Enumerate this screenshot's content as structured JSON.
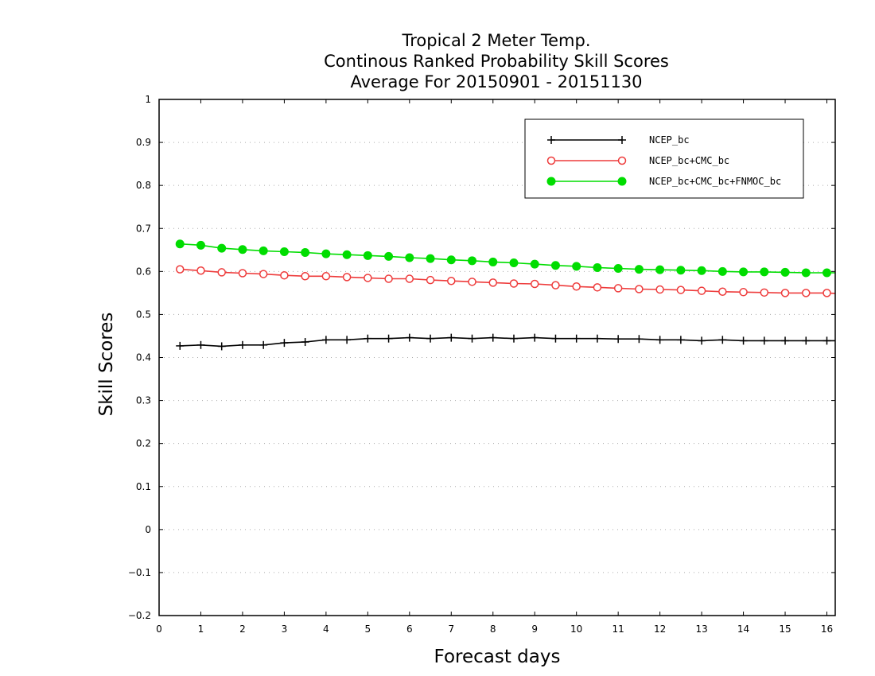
{
  "chart_data": {
    "type": "line",
    "title": [
      "Tropical 2 Meter Temp.",
      "Continous Ranked Probability Skill Scores",
      "Average For 20150901 - 20151130"
    ],
    "xlabel": "Forecast days",
    "ylabel": "Skill Scores",
    "xlim": [
      0,
      16.2
    ],
    "ylim": [
      -0.2,
      1
    ],
    "xticks": [
      0,
      1,
      2,
      3,
      4,
      5,
      6,
      7,
      8,
      9,
      10,
      11,
      12,
      13,
      14,
      15,
      16
    ],
    "xtick_labels": [
      "0",
      "1",
      "2",
      "3",
      "4",
      "5",
      "6",
      "7",
      "8",
      "9",
      "10",
      "11",
      "12",
      "13",
      "14",
      "15",
      "16"
    ],
    "yticks": [
      -0.2,
      -0.1,
      0,
      0.1,
      0.2,
      0.3,
      0.4,
      0.5,
      0.6,
      0.7,
      0.8,
      0.9,
      1
    ],
    "ytick_labels": [
      "−0.2",
      "−0.1",
      "0",
      "0.1",
      "0.2",
      "0.3",
      "0.4",
      "0.5",
      "0.6",
      "0.7",
      "0.8",
      "0.9",
      "1"
    ],
    "grid": true,
    "legend_position": "top-right",
    "x": [
      0.5,
      1,
      1.5,
      2,
      2.5,
      3,
      3.5,
      4,
      4.5,
      5,
      5.5,
      6,
      6.5,
      7,
      7.5,
      8,
      8.5,
      9,
      9.5,
      10,
      10.5,
      11,
      11.5,
      12,
      12.5,
      13,
      13.5,
      14,
      14.5,
      15,
      15.5,
      16,
      16.2
    ],
    "series": [
      {
        "name": "NCEP_bc",
        "color": "#000000",
        "marker": "plus",
        "values": [
          0.427,
          0.429,
          0.426,
          0.429,
          0.429,
          0.434,
          0.436,
          0.441,
          0.441,
          0.444,
          0.444,
          0.446,
          0.444,
          0.446,
          0.444,
          0.446,
          0.444,
          0.446,
          0.444,
          0.444,
          0.444,
          0.443,
          0.443,
          0.441,
          0.441,
          0.439,
          0.441,
          0.439,
          0.439,
          0.439,
          0.439,
          0.439,
          0.439
        ]
      },
      {
        "name": "NCEP_bc+CMC_bc",
        "color": "#ee3b3b",
        "marker": "open-circle",
        "values": [
          0.605,
          0.602,
          0.598,
          0.596,
          0.594,
          0.591,
          0.589,
          0.589,
          0.587,
          0.585,
          0.583,
          0.583,
          0.58,
          0.578,
          0.576,
          0.574,
          0.572,
          0.571,
          0.568,
          0.565,
          0.563,
          0.561,
          0.559,
          0.558,
          0.557,
          0.555,
          0.553,
          0.552,
          0.551,
          0.55,
          0.55,
          0.55,
          0.549
        ]
      },
      {
        "name": "NCEP_bc+CMC_bc+FNMOC_bc",
        "color": "#00dd00",
        "marker": "filled-circle",
        "values": [
          0.664,
          0.661,
          0.654,
          0.651,
          0.648,
          0.646,
          0.644,
          0.641,
          0.639,
          0.637,
          0.635,
          0.632,
          0.63,
          0.627,
          0.625,
          0.622,
          0.62,
          0.617,
          0.614,
          0.612,
          0.609,
          0.607,
          0.605,
          0.604,
          0.603,
          0.602,
          0.6,
          0.599,
          0.599,
          0.598,
          0.597,
          0.597,
          0.597
        ]
      }
    ]
  }
}
